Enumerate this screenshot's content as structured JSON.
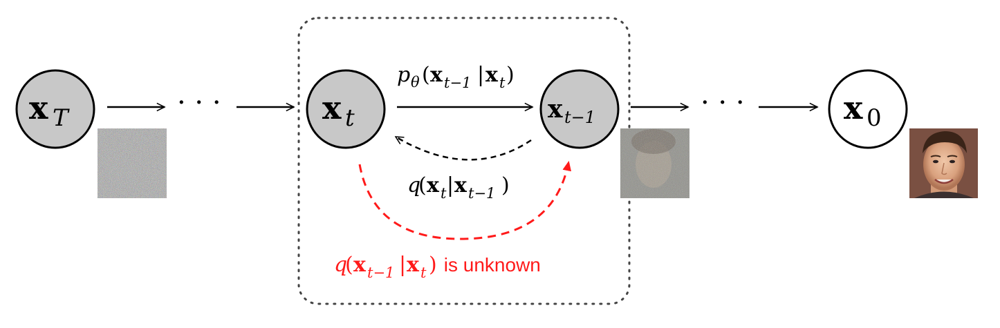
{
  "nodes": {
    "x_T": {
      "base": "x",
      "sub": "T"
    },
    "x_t": {
      "base": "x",
      "sub": "t"
    },
    "x_t_minus_1": {
      "base": "x",
      "sub": "t−1"
    },
    "x_0": {
      "base": "x",
      "sub": "0"
    }
  },
  "ellipsis": "· · ·",
  "labels": {
    "reverse_process": {
      "p": "p",
      "theta": "θ",
      "open": "(",
      "x1": "x",
      "x1_sub": "t−1",
      "bar": "|",
      "x2": "x",
      "x2_sub": "t",
      "close": ")"
    },
    "forward_process": {
      "q": "q",
      "open": "(",
      "x1": "x",
      "x1_sub": "t",
      "bar": "|",
      "x2": "x",
      "x2_sub": "t−1",
      "close": ")"
    },
    "unknown_posterior": {
      "q": "q",
      "open": "(",
      "x1": "x",
      "x1_sub": "t−1",
      "bar": "|",
      "x2": "x",
      "x2_sub": "t",
      "close": ")",
      "suffix": " is unknown"
    }
  },
  "colors": {
    "node_fill": "#c8c8c8",
    "node_fill_clean": "#ffffff",
    "arrow": "#000000",
    "unknown": "#ff1a1a",
    "box_border": "#444444"
  },
  "images": [
    "noise-image",
    "partially-denoised-face-image",
    "clean-face-image"
  ]
}
